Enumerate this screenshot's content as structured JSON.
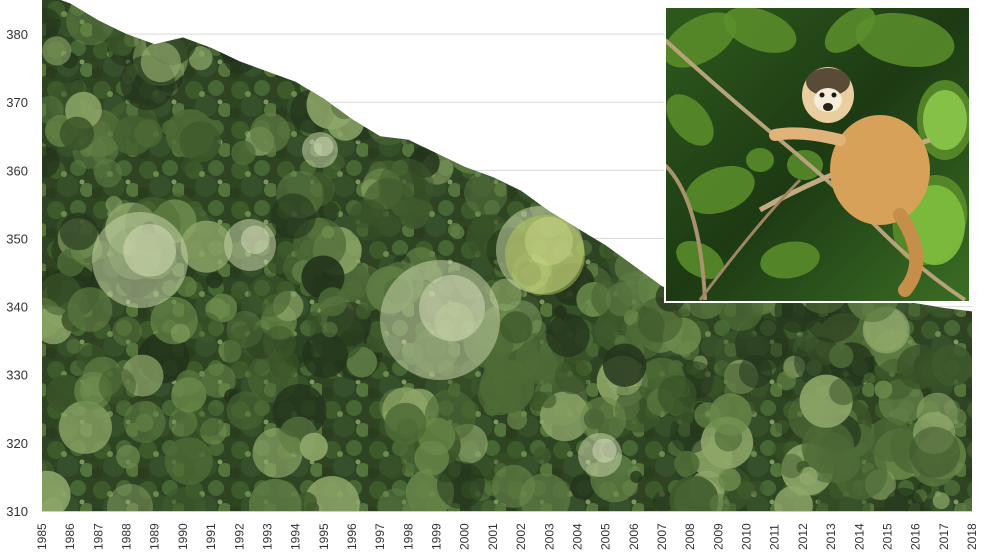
{
  "chart_data": {
    "type": "area",
    "title": "",
    "xlabel": "",
    "ylabel": "",
    "ylim": [
      310,
      385
    ],
    "yticks": [
      310,
      320,
      330,
      340,
      350,
      360,
      370,
      380
    ],
    "x": [
      1985,
      1986,
      1987,
      1988,
      1989,
      1990,
      1991,
      1992,
      1993,
      1994,
      1995,
      1996,
      1997,
      1998,
      1999,
      2000,
      2001,
      2002,
      2003,
      2004,
      2005,
      2006,
      2007,
      2008,
      2009,
      2010,
      2011,
      2012,
      2013,
      2014,
      2015,
      2016,
      2017,
      2018
    ],
    "series": [
      {
        "values": [
          386,
          384.5,
          382,
          380,
          378.5,
          379.5,
          378,
          376,
          374.5,
          373,
          370.5,
          367.5,
          365,
          364.5,
          362.5,
          360.5,
          359,
          357,
          354,
          351.5,
          349,
          346,
          343,
          341.3,
          341.3,
          341.2,
          341.1,
          341.1,
          341.0,
          341.0,
          341.0,
          340.5,
          339.8,
          339.3
        ],
        "fill": "forest-canopy-photo"
      }
    ],
    "inset_photo": "squirrel-monkey-on-branch",
    "grid": true,
    "colors": {
      "canopy_dark": "#22331b",
      "canopy_mid": "#3f5a2c",
      "canopy_light": "#8fa86a",
      "canopy_pale": "#c7d3a8",
      "monkey_fur": "#d8a15a",
      "leaf_green": "#5c8f2c",
      "grid": "#d9d9d9",
      "tick_text": "#333333"
    }
  }
}
